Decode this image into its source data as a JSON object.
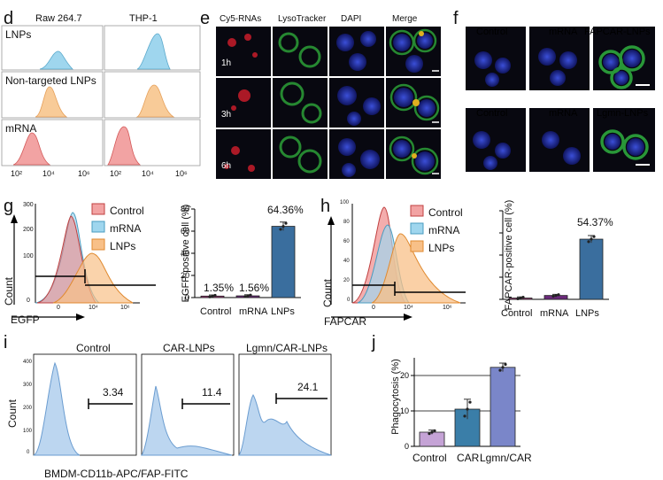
{
  "panels": {
    "d": "d",
    "e": "e",
    "f": "f",
    "g": "g",
    "h": "h",
    "i": "i",
    "j": "j"
  },
  "d": {
    "columns": [
      "Raw 264.7",
      "THP-1"
    ],
    "rows": [
      "LNPs",
      "Non-targeted LNPs",
      "mRNA"
    ],
    "ticks": [
      "10²",
      "10⁴",
      "10⁶"
    ],
    "colors": {
      "LNPs": "#7ec8e3",
      "Non-targeted LNPs": "#f5c088",
      "mRNA": "#ef8a8a"
    }
  },
  "e": {
    "columns": [
      "Cy5-RNAs",
      "LysoTracker",
      "DAPI",
      "Merge"
    ],
    "rows": [
      "1h",
      "3h",
      "6h"
    ]
  },
  "f": {
    "row1": [
      "Control",
      "mRNA",
      "FAPCAR-LNPs"
    ],
    "row2": [
      "Control",
      "mRNA",
      "Lgmn-LNPs"
    ]
  },
  "g": {
    "legend": [
      "Control",
      "mRNA",
      "LNPs"
    ],
    "xlabel": "EGFP",
    "ylabel": "Count",
    "yticks": [
      "300",
      "200",
      "100",
      "0"
    ],
    "xticks": [
      "0",
      "10⁴",
      "10⁶"
    ],
    "bar_ylabel": "EGFP-positive cell (%)",
    "bar_yticks": [
      "0",
      "20",
      "40",
      "60",
      "80"
    ],
    "bar_labels": [
      "1.35%",
      "1.56%",
      "64.36%"
    ],
    "bar_categories": [
      "Control",
      "mRNA",
      "LNPs"
    ]
  },
  "h": {
    "legend": [
      "Control",
      "mRNA",
      "LNPs"
    ],
    "xlabel": "FAPCAR",
    "ylabel": "Count",
    "yticks": [
      "100",
      "80",
      "60",
      "40",
      "20",
      "0"
    ],
    "xticks": [
      "0",
      "10⁴",
      "10⁶"
    ],
    "bar_ylabel": "FAPCAR-positive cell (%)",
    "bar_label": "54.37%",
    "bar_categories": [
      "Control",
      "mRNA",
      "LNPs"
    ]
  },
  "i": {
    "titles": [
      "Control",
      "CAR-LNPs",
      "Lgmn/CAR-LNPs"
    ],
    "gate_values": [
      "3.34",
      "11.4",
      "24.1"
    ],
    "ylabel": "Count",
    "xlabel": "BMDM-CD11b-APC/FAP-FITC",
    "yticks": [
      "400",
      "300",
      "200",
      "100",
      "0"
    ],
    "xticks": [
      "0",
      "10⁴"
    ]
  },
  "j": {
    "ylabel": "Phagocytosis (%)",
    "yticks": [
      "0",
      "10",
      "20"
    ],
    "categories": [
      "Control",
      "CAR",
      "Lgmn/CAR"
    ]
  },
  "chart_data": [
    {
      "type": "bar",
      "categories": [
        "Control",
        "mRNA",
        "LNPs"
      ],
      "values": [
        1.35,
        1.56,
        64.36
      ],
      "ylabel": "EGFP-positive cell (%)",
      "ylim": [
        0,
        80
      ],
      "colors": [
        "#9e3a7a",
        "#6a2a7a",
        "#3a6e9e"
      ]
    },
    {
      "type": "bar",
      "categories": [
        "Control",
        "mRNA",
        "LNPs"
      ],
      "values": [
        1.2,
        3.5,
        54.37
      ],
      "ylabel": "FAPCAR-positive cell (%)",
      "ylim": [
        0,
        80
      ],
      "colors": [
        "#9e3a7a",
        "#6a2a7a",
        "#3a6e9e"
      ]
    },
    {
      "type": "bar",
      "categories": [
        "Control",
        "CAR",
        "Lgmn/CAR"
      ],
      "values": [
        4.0,
        10.5,
        22.3
      ],
      "errors": [
        0.6,
        2.8,
        1.2
      ],
      "ylabel": "Phagocytosis (%)",
      "ylim": [
        0,
        25
      ],
      "colors": [
        "#c5a3d6",
        "#3a7ea8",
        "#7a86c9"
      ]
    }
  ]
}
